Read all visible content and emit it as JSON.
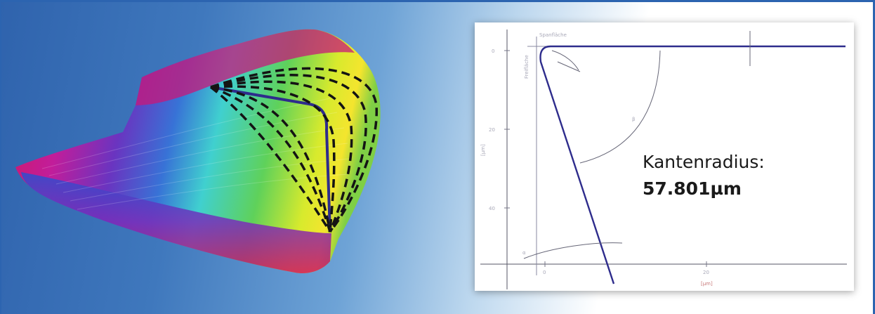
{
  "colors": {
    "background_left": "#2f63ad",
    "background_right": "#ffffff",
    "profile_line": "#2e2c8c",
    "axis_line": "#555566",
    "scan_colors": [
      "#d0185f",
      "#7a2fb8",
      "#2b5fd2",
      "#38c7d2",
      "#5fd15a",
      "#f2ea2d"
    ]
  },
  "measurement": {
    "label": "Kantenradius:",
    "value": "57.801µm"
  },
  "plot_labels": {
    "surface_caption": "Spanfläche",
    "flank_caption": "Freifläche",
    "angle_beta": "β",
    "angle_alpha": "α",
    "y_axis_unit": "[µm]",
    "x_axis_unit": "[µm]",
    "x_tick_0": "0",
    "x_tick_1": "20",
    "y_tick_0": "0",
    "y_tick_1": "20",
    "y_tick_2": "40"
  },
  "icons": [
    "cutting-edge-3d-scan",
    "edge-profile-plot"
  ]
}
